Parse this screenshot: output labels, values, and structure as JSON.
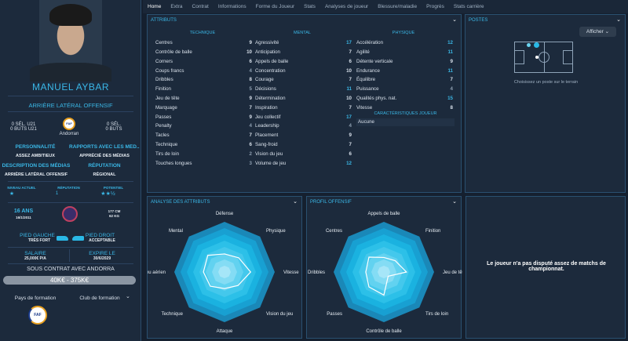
{
  "player": {
    "name": "MANUEL AYBAR",
    "position": "ARRIÈRE LATÉRAL OFFENSIF",
    "u21_caps": "0 SÉL. U21",
    "u21_goals": "0 BUTS U21",
    "caps": "0 SÉL.",
    "goals": "0 BUTS",
    "nationality": "Andorran",
    "fed_logo": "FAF",
    "personality_label": "PERSONNALITÉ",
    "personality": "ASSEZ AMBITIEUX",
    "media_label": "RAPPORTS AVEC LES MÉD...",
    "media": "APPRÉCIÉ DES MÉDIAS",
    "media_desc_label": "DESCRIPTION DES MÉDIAS",
    "media_desc": "ARRIÈRE LATÉRAL OFFENSIF",
    "reputation_label": "RÉPUTATION",
    "reputation": "RÉGIONAL",
    "current_label": "NIVEAU ACTUEL",
    "current_stars": "★",
    "rep_label": "RÉPUTATION",
    "rep_value": "1",
    "potential_label": "POTENTIEL",
    "potential_stars": "★★½",
    "age": "16 ANS",
    "dob": "16/1/2011",
    "height": "177 CM",
    "weight": "62 KG",
    "left_foot_label": "PIED GAUCHE",
    "left_foot": "TRÈS FORT",
    "right_foot_label": "PIED DROIT",
    "right_foot": "ACCEPTABLE",
    "salary_label": "SALAIRE",
    "salary": "25,000€ P/A",
    "expires_label": "EXPIRE LE",
    "expires": "30/6/2029",
    "contract": "SOUS CONTRAT AVEC ANDORRA",
    "value_range": "40K€ - 375K€",
    "training_country": "Pays de formation",
    "training_club": "Club de formation"
  },
  "tabs": [
    "Home",
    "Extra",
    "Contrat",
    "Informations",
    "Forme du Joueur",
    "Stats",
    "Analyses de joueur",
    "Blessure/maladie",
    "Progrès",
    "Stats carrière"
  ],
  "attributes": {
    "title": "ATTRIBUTS",
    "technique": {
      "label": "TECHNIQUE",
      "items": [
        [
          "Centres",
          9
        ],
        [
          "Contrôle de balle",
          10
        ],
        [
          "Corners",
          6
        ],
        [
          "Coups francs",
          4
        ],
        [
          "Dribbles",
          8
        ],
        [
          "Finition",
          5
        ],
        [
          "Jeu de tête",
          9
        ],
        [
          "Marquage",
          7
        ],
        [
          "Passes",
          9
        ],
        [
          "Penalty",
          4
        ],
        [
          "Tacles",
          7
        ],
        [
          "Technique",
          6
        ],
        [
          "Tirs de loin",
          2
        ],
        [
          "Touches longues",
          3
        ]
      ]
    },
    "mental": {
      "label": "MENTAL",
      "items": [
        [
          "Agressivité",
          17
        ],
        [
          "Anticipation",
          7
        ],
        [
          "Appels de balle",
          6
        ],
        [
          "Concentration",
          10
        ],
        [
          "Courage",
          7
        ],
        [
          "Décisions",
          11
        ],
        [
          "Détermination",
          10
        ],
        [
          "Inspiration",
          7
        ],
        [
          "Jeu collectif",
          17
        ],
        [
          "Leadership",
          4
        ],
        [
          "Placement",
          9
        ],
        [
          "Sang-froid",
          7
        ],
        [
          "Vision du jeu",
          6
        ],
        [
          "Volume de jeu",
          12
        ]
      ]
    },
    "physique": {
      "label": "PHYSIQUE",
      "items": [
        [
          "Accélération",
          12
        ],
        [
          "Agilité",
          11
        ],
        [
          "Détente verticale",
          9
        ],
        [
          "Endurance",
          11
        ],
        [
          "Équilibre",
          7
        ],
        [
          "Puissance",
          4
        ],
        [
          "Qualités phys. nat.",
          15
        ],
        [
          "Vitesse",
          8
        ]
      ]
    },
    "traits_label": "CARACTÉRISTIQUES JOUEUR",
    "traits": "Aucune"
  },
  "positions": {
    "title": "POSTES",
    "button": "Afficher",
    "hint": "Choisissez un poste sur le terrain"
  },
  "no_matches": "Le joueur n'a pas disputé assez de matchs de championnat.",
  "colors": {
    "accent": "#3ab7e6",
    "bg": "#1c2a3c"
  },
  "chart_data": [
    {
      "type": "radar",
      "title": "ANALYSE DES ATTRIBUTS",
      "axes": [
        "Défense",
        "Physique",
        "Vitesse",
        "Vision du jeu",
        "Attaque",
        "Technique",
        "Jeu aérien",
        "Mental"
      ],
      "values": [
        0.36,
        0.4,
        0.52,
        0.38,
        0.33,
        0.4,
        0.42,
        0.47
      ],
      "range": [
        0,
        1
      ]
    },
    {
      "type": "radar",
      "title": "PROFIL OFFENSIF",
      "axes": [
        "Appels de balle",
        "Finition",
        "Jeu de tête",
        "Tirs de loin",
        "Contrôle de balle",
        "Passes",
        "Dribbles",
        "Centres"
      ],
      "values": [
        0.29,
        0.32,
        0.45,
        0.12,
        0.46,
        0.42,
        0.36,
        0.42
      ],
      "range": [
        0,
        1
      ]
    }
  ]
}
